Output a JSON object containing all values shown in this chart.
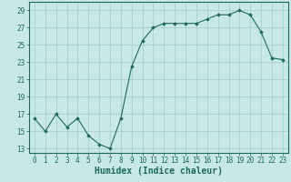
{
  "x": [
    0,
    1,
    2,
    3,
    4,
    5,
    6,
    7,
    8,
    9,
    10,
    11,
    12,
    13,
    14,
    15,
    16,
    17,
    18,
    19,
    20,
    21,
    22,
    23
  ],
  "y": [
    16.5,
    15.0,
    17.0,
    15.5,
    16.5,
    14.5,
    13.5,
    13.0,
    16.5,
    22.5,
    25.5,
    27.0,
    27.5,
    27.5,
    27.5,
    27.5,
    28.0,
    28.5,
    28.5,
    29.0,
    28.5,
    26.5,
    23.5,
    23.3
  ],
  "xlabel": "Humidex (Indice chaleur)",
  "line_color": "#1a6b5a",
  "bg_color": "#c8e8e8",
  "grid_color": "#a0cccc",
  "ylim": [
    12.5,
    30.0
  ],
  "xlim": [
    -0.5,
    23.5
  ],
  "yticks": [
    13,
    15,
    17,
    19,
    21,
    23,
    25,
    27,
    29
  ],
  "xticks": [
    0,
    1,
    2,
    3,
    4,
    5,
    6,
    7,
    8,
    9,
    10,
    11,
    12,
    13,
    14,
    15,
    16,
    17,
    18,
    19,
    20,
    21,
    22,
    23
  ],
  "tick_fontsize": 5.5,
  "xlabel_fontsize": 7,
  "marker": "D",
  "markersize": 1.8,
  "linewidth": 0.8
}
